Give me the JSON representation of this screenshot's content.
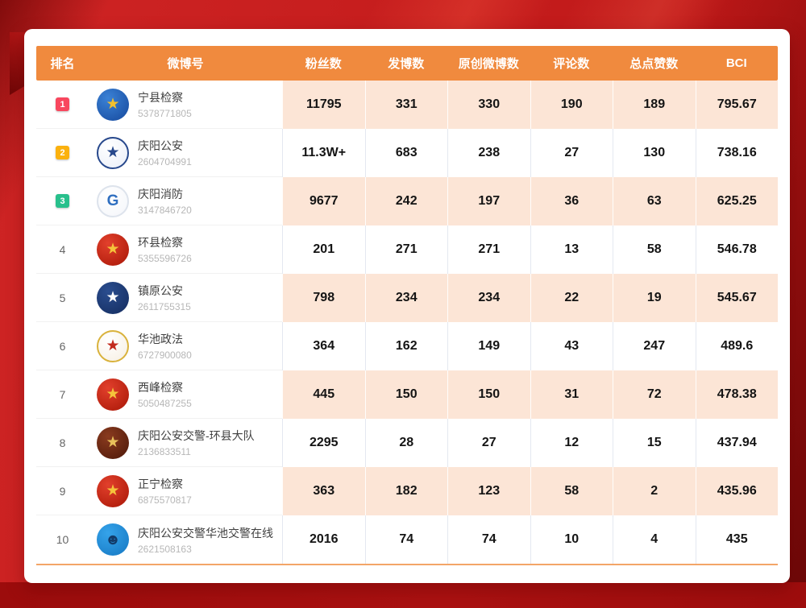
{
  "colors": {
    "page_background": "#c8201f",
    "bottom_strip": "#a30e0e",
    "card_background": "#ffffff",
    "header_background": "#f08a3e",
    "shaded_cell_background": "#fce5d6",
    "table_underline": "#f3a568",
    "badge_rank1": "#f8475e",
    "badge_rank2": "#fbb10e",
    "badge_rank3": "#28c08c"
  },
  "chart_data": {
    "type": "table",
    "columns": [
      {
        "key": "rank",
        "label": "排名"
      },
      {
        "key": "account",
        "label": "微博号"
      },
      {
        "key": "followers",
        "label": "粉丝数"
      },
      {
        "key": "posts",
        "label": "发博数"
      },
      {
        "key": "originals",
        "label": "原创微博数"
      },
      {
        "key": "comments",
        "label": "评论数"
      },
      {
        "key": "likes",
        "label": "总点赞数"
      },
      {
        "key": "bci",
        "label": "BCI"
      }
    ],
    "rows": [
      {
        "rank": "1",
        "badge_color": "#f8475e",
        "name": "宁县检察",
        "weibo_id": "5378771805",
        "followers": "11795",
        "posts": "331",
        "originals": "330",
        "comments": "190",
        "likes": "189",
        "bci": "795.67",
        "shaded": true,
        "avatar": {
          "bg": "#3b82d6",
          "bg2": "#15489c",
          "glyph": "★",
          "glyph_color": "#f2c12e",
          "ring": ""
        }
      },
      {
        "rank": "2",
        "badge_color": "#fbb10e",
        "name": "庆阳公安",
        "weibo_id": "2604704991",
        "followers": "11.3W+",
        "posts": "683",
        "originals": "238",
        "comments": "27",
        "likes": "130",
        "bci": "738.16",
        "shaded": false,
        "avatar": {
          "bg": "#ffffff",
          "bg2": "#e9eef8",
          "glyph": "★",
          "glyph_color": "#27488c",
          "ring": "#27488c"
        }
      },
      {
        "rank": "3",
        "badge_color": "#28c08c",
        "name": "庆阳消防",
        "weibo_id": "3147846720",
        "followers": "9677",
        "posts": "242",
        "originals": "197",
        "comments": "36",
        "likes": "63",
        "bci": "625.25",
        "shaded": true,
        "avatar": {
          "bg": "#ffffff",
          "bg2": "#f4f6fa",
          "glyph": "G",
          "glyph_color": "#2f6fc0",
          "ring": "#dde3ec"
        }
      },
      {
        "rank": "4",
        "badge_color": "",
        "name": "环县检察",
        "weibo_id": "5355596726",
        "followers": "201",
        "posts": "271",
        "originals": "271",
        "comments": "13",
        "likes": "58",
        "bci": "546.78",
        "shaded": false,
        "avatar": {
          "bg": "#e2402c",
          "bg2": "#a81606",
          "glyph": "★",
          "glyph_color": "#f5c33b",
          "ring": ""
        }
      },
      {
        "rank": "5",
        "badge_color": "",
        "name": "镇原公安",
        "weibo_id": "2611755315",
        "followers": "798",
        "posts": "234",
        "originals": "234",
        "comments": "22",
        "likes": "19",
        "bci": "545.67",
        "shaded": true,
        "avatar": {
          "bg": "#2a4d8f",
          "bg2": "#142c5e",
          "glyph": "★",
          "glyph_color": "#ffffff",
          "ring": ""
        }
      },
      {
        "rank": "6",
        "badge_color": "",
        "name": "华池政法",
        "weibo_id": "6727900080",
        "followers": "364",
        "posts": "162",
        "originals": "149",
        "comments": "43",
        "likes": "247",
        "bci": "489.6",
        "shaded": false,
        "avatar": {
          "bg": "#ffffff",
          "bg2": "#f6efe2",
          "glyph": "★",
          "glyph_color": "#c22a1d",
          "ring": "#d9b23c"
        }
      },
      {
        "rank": "7",
        "badge_color": "",
        "name": "西峰检察",
        "weibo_id": "5050487255",
        "followers": "445",
        "posts": "150",
        "originals": "150",
        "comments": "31",
        "likes": "72",
        "bci": "478.38",
        "shaded": true,
        "avatar": {
          "bg": "#e2402c",
          "bg2": "#a81606",
          "glyph": "★",
          "glyph_color": "#f5c33b",
          "ring": ""
        }
      },
      {
        "rank": "8",
        "badge_color": "",
        "name": "庆阳公安交警-环县大队",
        "weibo_id": "2136833511",
        "followers": "2295",
        "posts": "28",
        "originals": "27",
        "comments": "12",
        "likes": "15",
        "bci": "437.94",
        "shaded": false,
        "avatar": {
          "bg": "#8a3b1f",
          "bg2": "#4c1708",
          "glyph": "★",
          "glyph_color": "#e8c05a",
          "ring": ""
        }
      },
      {
        "rank": "9",
        "badge_color": "",
        "name": "正宁检察",
        "weibo_id": "6875570817",
        "followers": "363",
        "posts": "182",
        "originals": "123",
        "comments": "58",
        "likes": "2",
        "bci": "435.96",
        "shaded": true,
        "avatar": {
          "bg": "#e2402c",
          "bg2": "#a81606",
          "glyph": "★",
          "glyph_color": "#f5c33b",
          "ring": ""
        }
      },
      {
        "rank": "10",
        "badge_color": "",
        "name": "庆阳公安交警华池交警在线",
        "weibo_id": "2621508163",
        "followers": "2016",
        "posts": "74",
        "originals": "74",
        "comments": "10",
        "likes": "4",
        "bci": "435",
        "shaded": false,
        "avatar": {
          "bg": "#35a3ea",
          "bg2": "#1577c2",
          "glyph": "☻",
          "glyph_color": "#123a68",
          "ring": ""
        }
      }
    ]
  }
}
